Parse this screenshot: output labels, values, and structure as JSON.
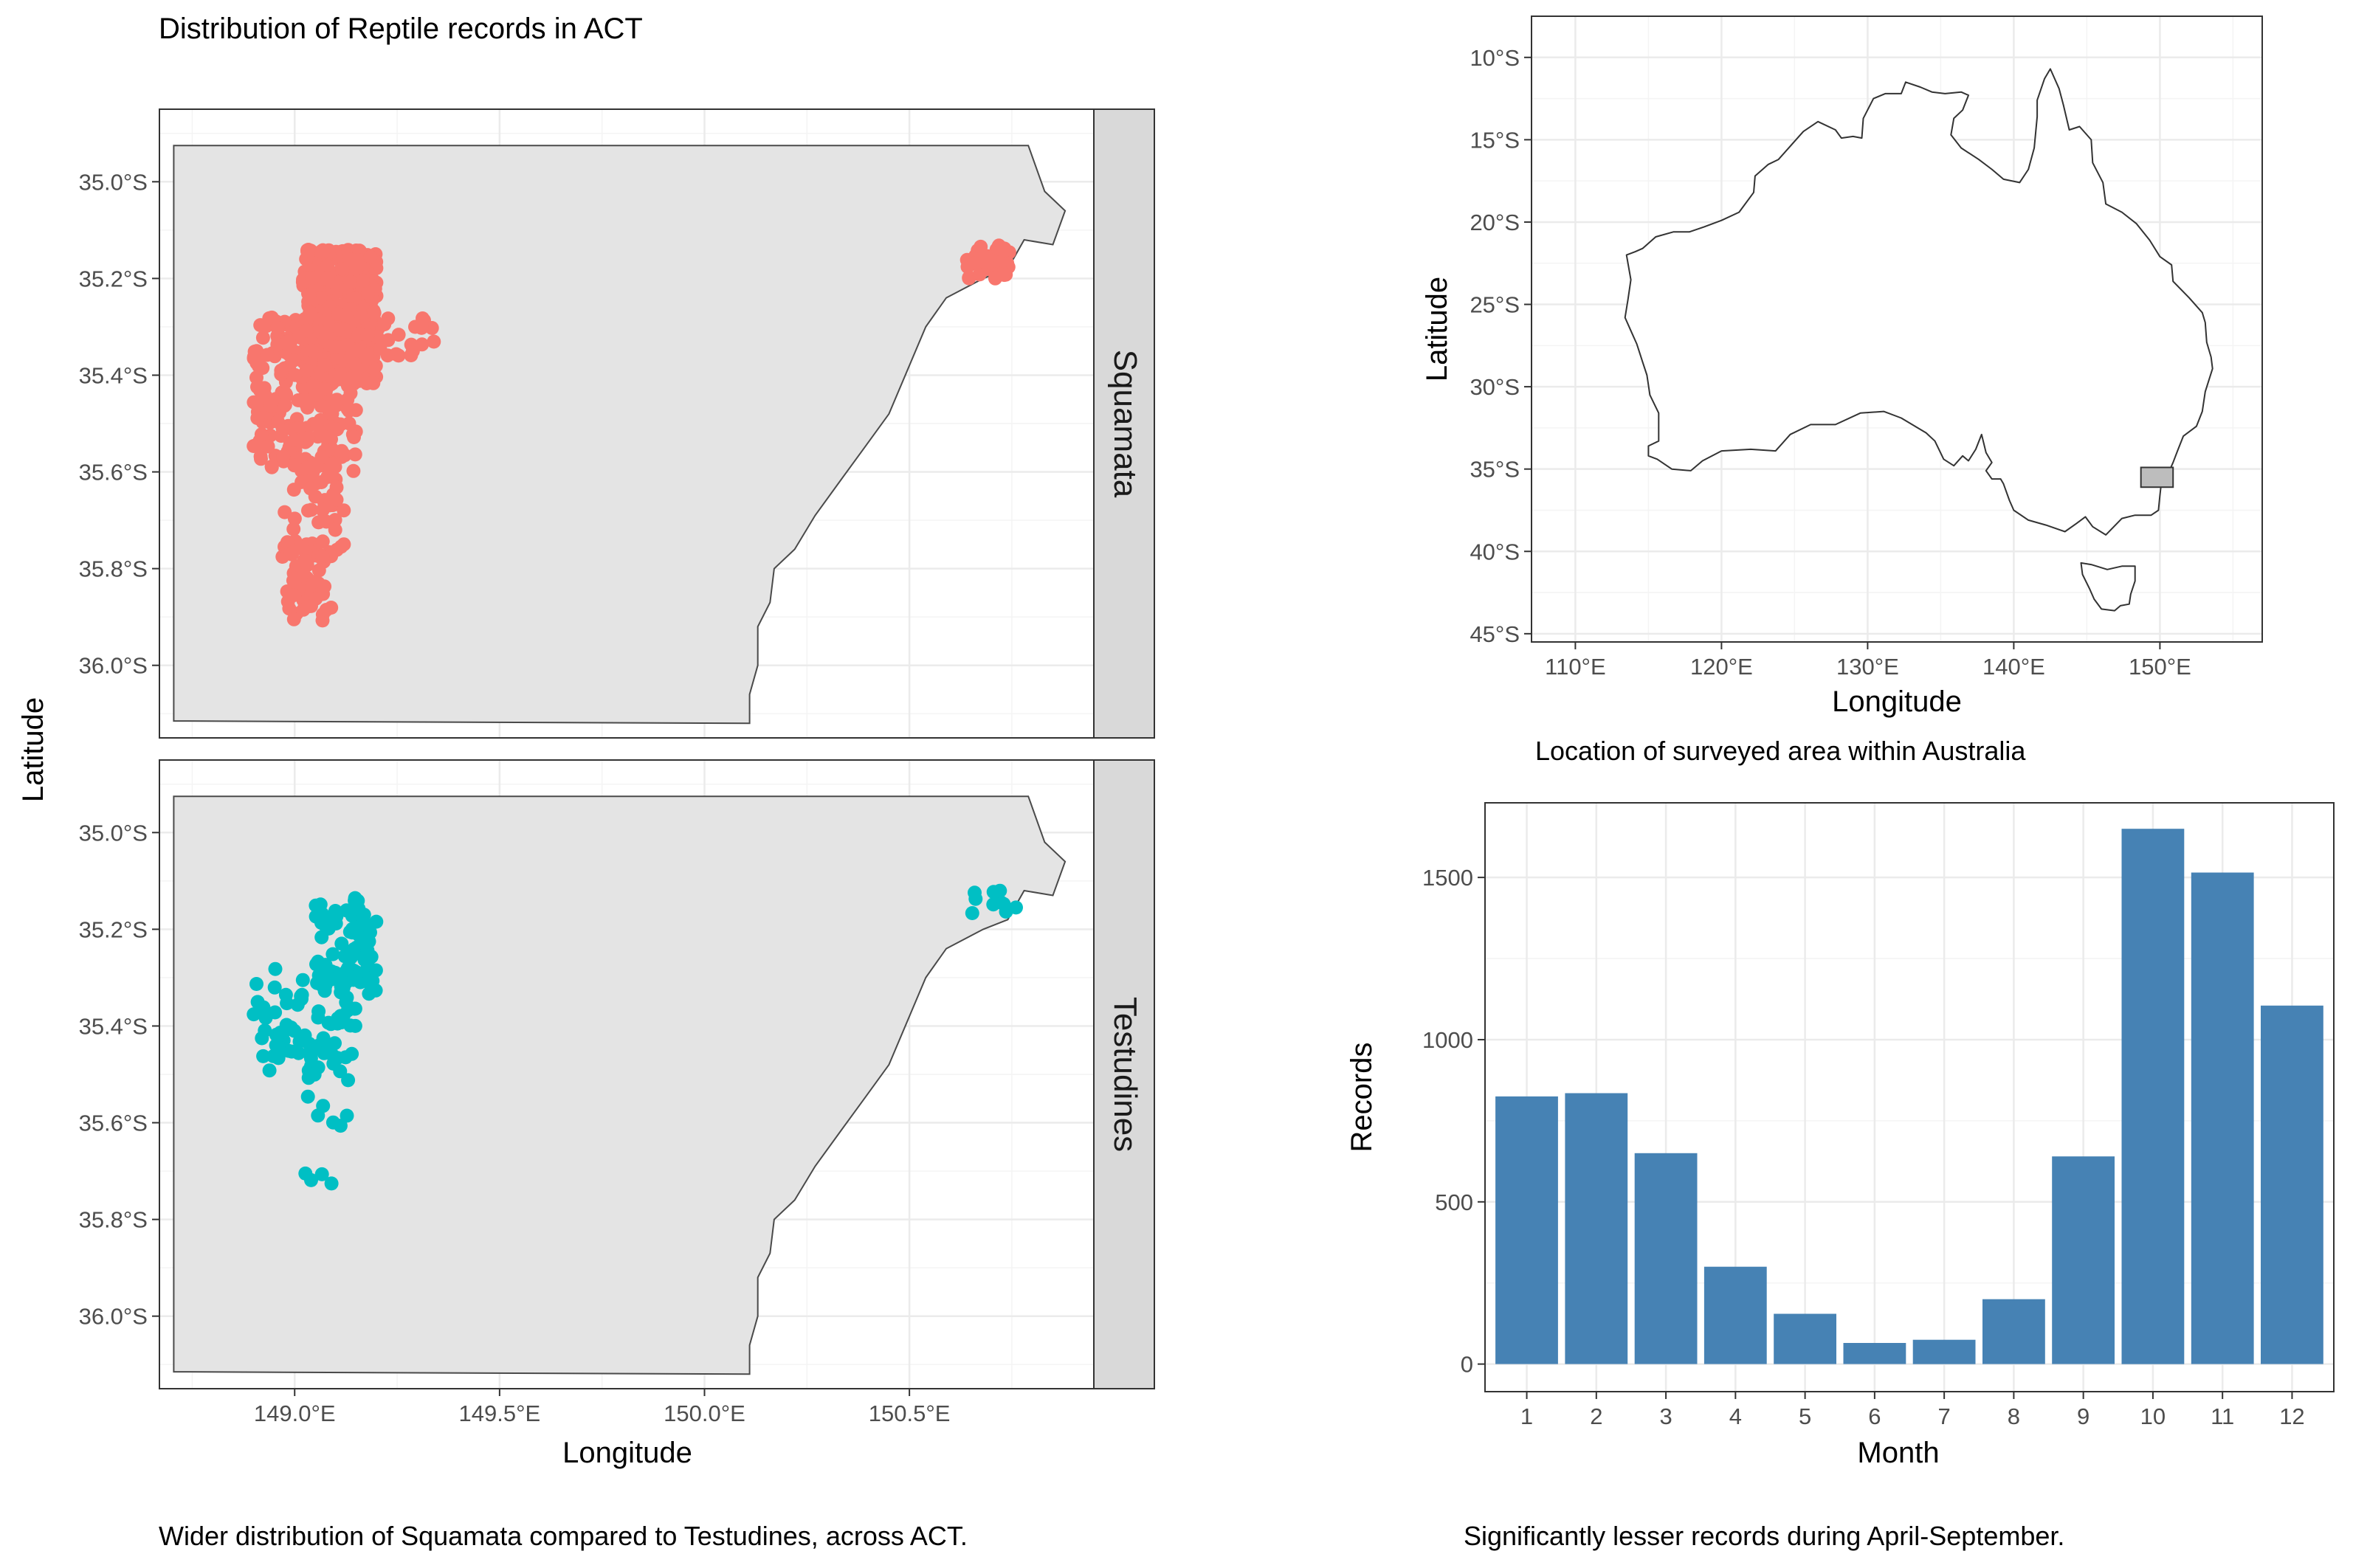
{
  "figure": {
    "title": "Distribution of Reptile records in ACT",
    "left_caption": "Wider distribution of Squamata compared to Testudines, across ACT.",
    "inset_caption": "Location of surveyed area within Australia",
    "bar_caption": "Significantly lesser records during April-September."
  },
  "chart_data": [
    {
      "type": "scatter",
      "title": "Distribution of Reptile records in ACT",
      "xlabel": "Longitude",
      "ylabel": "Latitude",
      "xlim": [
        148.67,
        150.95
      ],
      "ylim": [
        -36.15,
        -34.85
      ],
      "x_ticks": [
        {
          "value": 149.0,
          "label": "149.0°E"
        },
        {
          "value": 149.5,
          "label": "149.5°E"
        },
        {
          "value": 150.0,
          "label": "150.0°E"
        },
        {
          "value": 150.5,
          "label": "150.5°E"
        }
      ],
      "y_ticks": [
        {
          "value": -35.0,
          "label": "35.0°S"
        },
        {
          "value": -35.2,
          "label": "35.2°S"
        },
        {
          "value": -35.4,
          "label": "35.4°S"
        },
        {
          "value": -35.6,
          "label": "35.6°S"
        },
        {
          "value": -35.8,
          "label": "35.8°S"
        },
        {
          "value": -36.0,
          "label": "36.0°S"
        }
      ],
      "grid": true,
      "facets": [
        {
          "name": "Squamata",
          "color": "#F8766D",
          "clusters": [
            {
              "lon": [
                149.02,
                149.2
              ],
              "lat": [
                -35.42,
                -35.14
              ],
              "n": 520
            },
            {
              "lon": [
                148.9,
                149.15
              ],
              "lat": [
                -35.6,
                -35.28
              ],
              "n": 230
            },
            {
              "lon": [
                148.97,
                149.12
              ],
              "lat": [
                -35.78,
                -35.55
              ],
              "n": 60
            },
            {
              "lon": [
                148.97,
                149.09
              ],
              "lat": [
                -35.91,
                -35.75
              ],
              "n": 45
            },
            {
              "lon": [
                149.15,
                149.34
              ],
              "lat": [
                -35.36,
                -35.27
              ],
              "n": 25
            },
            {
              "lon": [
                150.63,
                150.75
              ],
              "lat": [
                -35.2,
                -35.13
              ],
              "n": 45
            }
          ]
        },
        {
          "name": "Testudines",
          "color": "#00BFC4",
          "clusters": [
            {
              "lon": [
                149.05,
                149.2
              ],
              "lat": [
                -35.34,
                -35.12
              ],
              "n": 90
            },
            {
              "lon": [
                148.9,
                149.15
              ],
              "lat": [
                -35.5,
                -35.28
              ],
              "n": 75
            },
            {
              "lon": [
                149.02,
                149.14
              ],
              "lat": [
                -35.62,
                -35.45
              ],
              "n": 14
            },
            {
              "lon": [
                148.98,
                149.09
              ],
              "lat": [
                -35.75,
                -35.7
              ],
              "n": 4
            },
            {
              "lon": [
                150.65,
                150.77
              ],
              "lat": [
                -35.17,
                -35.12
              ],
              "n": 10
            }
          ]
        }
      ]
    },
    {
      "type": "map",
      "title": "Location of surveyed area within Australia",
      "xlabel": "Longitude",
      "ylabel": "Latitude",
      "xlim": [
        107,
        157
      ],
      "ylim": [
        -45.5,
        -7.5
      ],
      "x_ticks": [
        {
          "value": 110,
          "label": "110°E"
        },
        {
          "value": 120,
          "label": "120°E"
        },
        {
          "value": 130,
          "label": "130°E"
        },
        {
          "value": 140,
          "label": "140°E"
        },
        {
          "value": 150,
          "label": "150°E"
        }
      ],
      "y_ticks": [
        {
          "value": -10,
          "label": "10°S"
        },
        {
          "value": -15,
          "label": "15°S"
        },
        {
          "value": -20,
          "label": "20°S"
        },
        {
          "value": -25,
          "label": "25°S"
        },
        {
          "value": -30,
          "label": "30°S"
        },
        {
          "value": -35,
          "label": "35°S"
        },
        {
          "value": -40,
          "label": "40°S"
        },
        {
          "value": -45,
          "label": "45°S"
        }
      ],
      "highlight_box": {
        "lon": [
          148.7,
          150.9
        ],
        "lat": [
          -36.1,
          -34.9
        ]
      },
      "grid": true
    },
    {
      "type": "bar",
      "title": "Significantly lesser records during April-September.",
      "xlabel": "Month",
      "ylabel": "Records",
      "categories": [
        "1",
        "2",
        "3",
        "4",
        "5",
        "6",
        "7",
        "8",
        "9",
        "10",
        "11",
        "12"
      ],
      "values": [
        825,
        835,
        650,
        300,
        155,
        65,
        75,
        200,
        640,
        1650,
        1515,
        1105
      ],
      "ylim": [
        -85,
        1730
      ],
      "y_ticks": [
        0,
        500,
        1000,
        1500
      ],
      "color": "#4682B4",
      "grid": true
    }
  ]
}
